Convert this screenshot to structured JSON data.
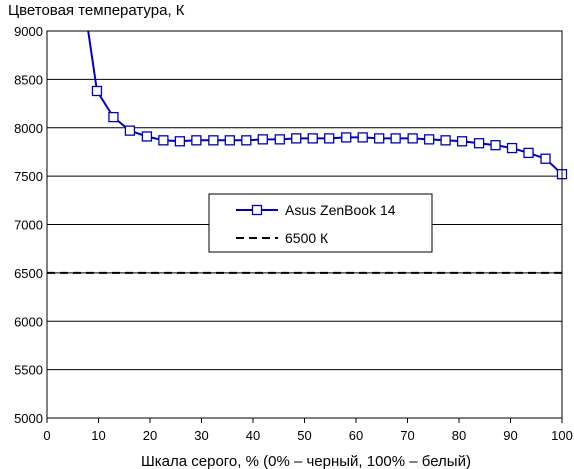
{
  "chart_data": {
    "type": "line",
    "title": "Цветовая температура, К",
    "xlabel": "Шкала серого, % (0% – черный, 100% – белый)",
    "ylabel": "",
    "xlim": [
      0,
      100
    ],
    "ylim": [
      5000,
      9000
    ],
    "x_ticks": [
      "0",
      "10",
      "20",
      "30",
      "40",
      "50",
      "60",
      "70",
      "80",
      "90",
      "100"
    ],
    "y_ticks": [
      "5000",
      "5500",
      "6000",
      "6500",
      "7000",
      "7500",
      "8000",
      "8500",
      "9000"
    ],
    "grid": "horizontal",
    "legend_position": "center",
    "series": [
      {
        "name": "Asus ZenBook 14",
        "color": "#0000c0",
        "marker": "square",
        "x": [
          8,
          9.7,
          12.9,
          16.1,
          19.4,
          22.6,
          25.8,
          29,
          32.3,
          35.5,
          38.7,
          41.9,
          45.2,
          48.4,
          51.6,
          54.8,
          58.1,
          61.3,
          64.5,
          67.7,
          71,
          74.2,
          77.4,
          80.6,
          83.9,
          87.1,
          90.3,
          93.5,
          96.8,
          100
        ],
        "y": [
          9000,
          8380,
          8110,
          7970,
          7910,
          7870,
          7860,
          7870,
          7870,
          7870,
          7870,
          7880,
          7880,
          7890,
          7890,
          7890,
          7900,
          7900,
          7890,
          7890,
          7890,
          7880,
          7870,
          7860,
          7840,
          7820,
          7790,
          7740,
          7680,
          7520
        ],
        "marker_from_index": 1
      },
      {
        "name": "6500 К",
        "color": "#000000",
        "style": "dashed",
        "x": [
          0,
          100
        ],
        "y": [
          6500,
          6500
        ]
      }
    ]
  }
}
